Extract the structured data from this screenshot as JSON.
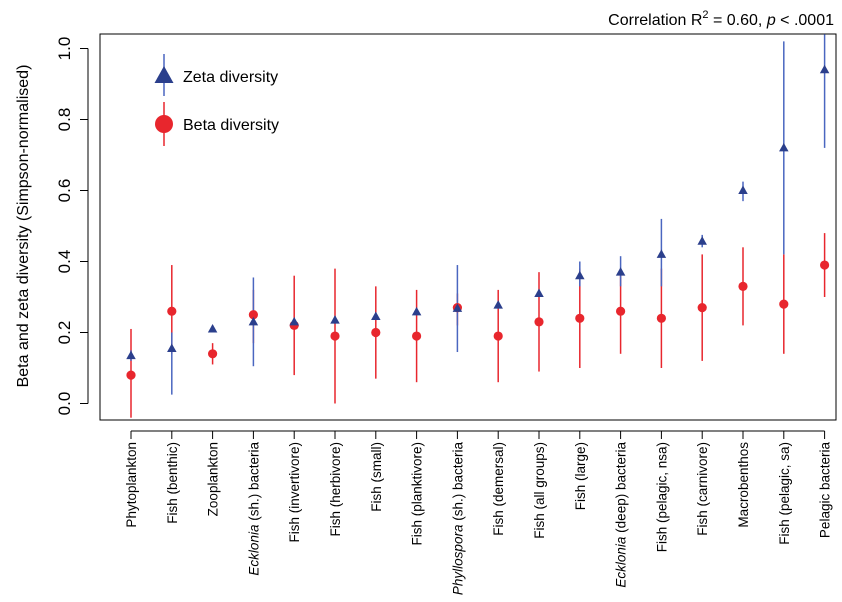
{
  "chart_data": {
    "type": "scatter",
    "annotation": {
      "prefix": "Correlation R",
      "sup": "2",
      "mid": " = 0.60, ",
      "p_italic": "p",
      "suffix": " < .0001"
    },
    "ylabel": "Beta and zeta diversity (Simpson-normalised)",
    "ylim": [
      0,
      1.0
    ],
    "yticks": [
      "0.0",
      "0.2",
      "0.4",
      "0.6",
      "0.8",
      "1.0"
    ],
    "ytick_values": [
      0,
      0.2,
      0.4,
      0.6,
      0.8,
      1.0
    ],
    "grid": false,
    "legend_position": "top-left",
    "categories": [
      {
        "parts": [
          {
            "t": "Phytoplankton",
            "i": false
          }
        ]
      },
      {
        "parts": [
          {
            "t": "Fish (benthic)",
            "i": false
          }
        ]
      },
      {
        "parts": [
          {
            "t": "Zooplankton",
            "i": false
          }
        ]
      },
      {
        "parts": [
          {
            "t": "Ecklonia",
            "i": true
          },
          {
            "t": " (sh.) bacteria",
            "i": false
          }
        ]
      },
      {
        "parts": [
          {
            "t": "Fish (invertivore)",
            "i": false
          }
        ]
      },
      {
        "parts": [
          {
            "t": "Fish (herbivore)",
            "i": false
          }
        ]
      },
      {
        "parts": [
          {
            "t": "Fish (small)",
            "i": false
          }
        ]
      },
      {
        "parts": [
          {
            "t": "Fish (planktivore)",
            "i": false
          }
        ]
      },
      {
        "parts": [
          {
            "t": "Phyllospora",
            "i": true
          },
          {
            "t": " (sh.) bacteria",
            "i": false
          }
        ]
      },
      {
        "parts": [
          {
            "t": "Fish (demersal)",
            "i": false
          }
        ]
      },
      {
        "parts": [
          {
            "t": "Fish (all groups)",
            "i": false
          }
        ]
      },
      {
        "parts": [
          {
            "t": "Fish (large)",
            "i": false
          }
        ]
      },
      {
        "parts": [
          {
            "t": "Ecklonia",
            "i": true
          },
          {
            "t": " (deep) bacteria",
            "i": false
          }
        ]
      },
      {
        "parts": [
          {
            "t": "Fish (pelagic, nsa)",
            "i": false
          }
        ]
      },
      {
        "parts": [
          {
            "t": "Fish (carnivore)",
            "i": false
          }
        ]
      },
      {
        "parts": [
          {
            "t": "Macrobenthos",
            "i": false
          }
        ]
      },
      {
        "parts": [
          {
            "t": "Fish (pelagic, sa)",
            "i": false
          }
        ]
      },
      {
        "parts": [
          {
            "t": "Pelagic bacteria",
            "i": false
          }
        ]
      }
    ],
    "series": [
      {
        "name": "Zeta diversity",
        "marker": "triangle",
        "color": "#2B3F8C",
        "error_color": "#4A66C0",
        "values": [
          0.135,
          0.155,
          0.21,
          0.23,
          0.23,
          0.235,
          0.245,
          0.258,
          0.268,
          0.277,
          0.31,
          0.36,
          0.37,
          0.42,
          0.457,
          0.6,
          0.72,
          0.94
        ],
        "lower": [
          0.12,
          0.025,
          0.2,
          0.105,
          0.22,
          0.225,
          0.235,
          0.248,
          0.145,
          0.267,
          0.3,
          0.33,
          0.33,
          0.33,
          0.44,
          0.57,
          0.42,
          0.72
        ],
        "upper": [
          0.15,
          0.2,
          0.22,
          0.355,
          0.24,
          0.245,
          0.255,
          0.268,
          0.39,
          0.287,
          0.32,
          0.4,
          0.415,
          0.52,
          0.475,
          0.625,
          1.02,
          1.04
        ]
      },
      {
        "name": "Beta diversity",
        "marker": "circle",
        "color": "#E8262D",
        "error_color": "#E8262D",
        "values": [
          0.08,
          0.26,
          0.14,
          0.25,
          0.22,
          0.19,
          0.2,
          0.19,
          0.27,
          0.19,
          0.23,
          0.24,
          0.26,
          0.24,
          0.27,
          0.33,
          0.28,
          0.39
        ],
        "lower": [
          -0.04,
          0.14,
          0.11,
          0.17,
          0.08,
          0.0,
          0.07,
          0.06,
          0.22,
          0.06,
          0.09,
          0.1,
          0.14,
          0.1,
          0.12,
          0.22,
          0.14,
          0.3
        ],
        "upper": [
          0.21,
          0.39,
          0.17,
          0.32,
          0.36,
          0.38,
          0.33,
          0.32,
          0.31,
          0.32,
          0.37,
          0.38,
          0.38,
          0.38,
          0.42,
          0.44,
          0.42,
          0.48
        ]
      }
    ]
  }
}
